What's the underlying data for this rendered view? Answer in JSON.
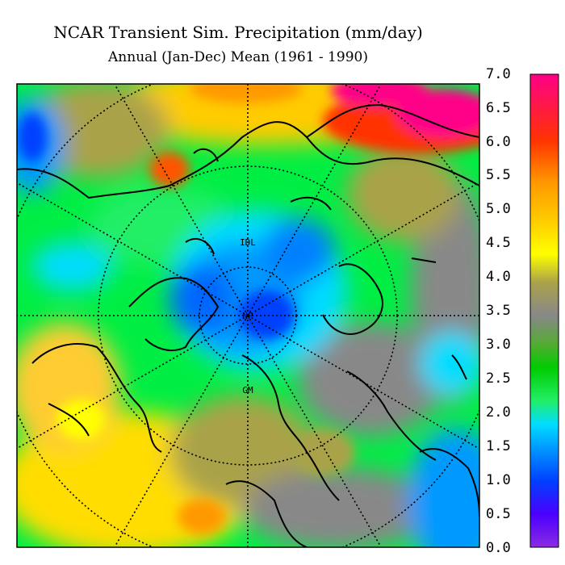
{
  "title": "NCAR Transient Sim. Precipitation (mm/day)",
  "subtitle": "Annual (Jan-Dec) Mean (1961 - 1990)",
  "map_labels": {
    "longitude_top": "IDL",
    "pole": "NP",
    "longitude_bottom": "GM"
  },
  "colorbar": {
    "labels": [
      "7.0",
      "6.5",
      "6.0",
      "5.5",
      "5.0",
      "4.5",
      "4.0",
      "3.5",
      "3.0",
      "2.5",
      "2.0",
      "1.5",
      "1.0",
      "0.5",
      "0.0"
    ],
    "min": 0.0,
    "max": 7.0,
    "colors_low_to_high": [
      "#8a2be2",
      "#4b00ff",
      "#0040ff",
      "#0099ff",
      "#00ddff",
      "#22ee66",
      "#00cc00",
      "#55aa33",
      "#888888",
      "#aaa24a",
      "#ffff00",
      "#ffcc00",
      "#ff9900",
      "#ff3300",
      "#ff0088"
    ]
  },
  "colors": {
    "map_background": "#00ee44",
    "frame": "#000000",
    "graticule": "#000000"
  }
}
